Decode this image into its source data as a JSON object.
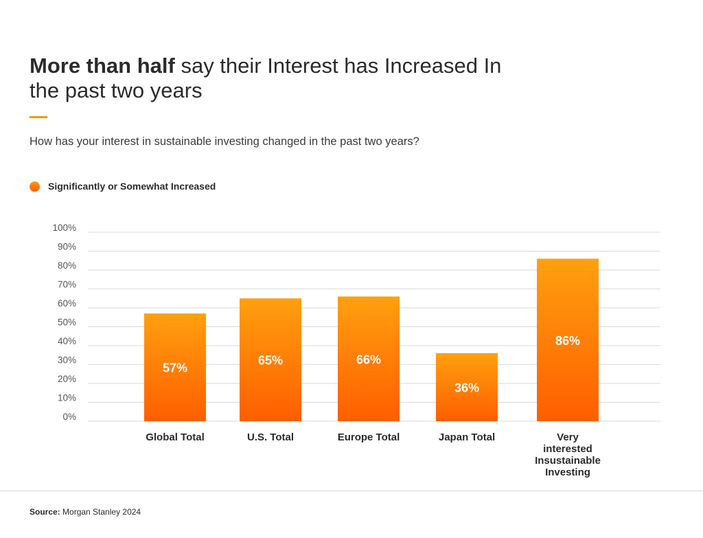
{
  "title": {
    "bold": "More than half",
    "rest": " say their Interest has Increased In the past two years"
  },
  "subtitle": "How has your interest in sustainable investing changed in the past two years?",
  "legend": {
    "label": "Significantly or Somewhat Increased"
  },
  "source": {
    "label": "Source:",
    "text": " Morgan Stanley 2024"
  },
  "colors": {
    "bar_top": "#ffa00f",
    "bar_bottom": "#ff5e00",
    "accent": "#f59a0c",
    "grid": "#d9d9d9"
  },
  "chart_data": {
    "type": "bar",
    "title": "More than half say their Interest has Increased In the past two years",
    "xlabel": "",
    "ylabel": "",
    "ylim": [
      0,
      100
    ],
    "yticks": [
      0,
      10,
      20,
      30,
      40,
      50,
      60,
      70,
      80,
      90,
      100
    ],
    "ytick_labels": [
      "0%",
      "10%",
      "20%",
      "30%",
      "40%",
      "50%",
      "60%",
      "70%",
      "80%",
      "90%",
      "100%"
    ],
    "grid": true,
    "categories": [
      [
        "Global Total"
      ],
      [
        "U.S. Total"
      ],
      [
        "Europe Total"
      ],
      [
        "Japan Total"
      ],
      [
        "Very",
        "interested",
        "Insustainable",
        "Investing"
      ]
    ],
    "series": [
      {
        "name": "Significantly or Somewhat Increased",
        "values": [
          57,
          65,
          66,
          36,
          86
        ],
        "labels": [
          "57%",
          "65%",
          "66%",
          "36%",
          "86%"
        ]
      }
    ]
  }
}
